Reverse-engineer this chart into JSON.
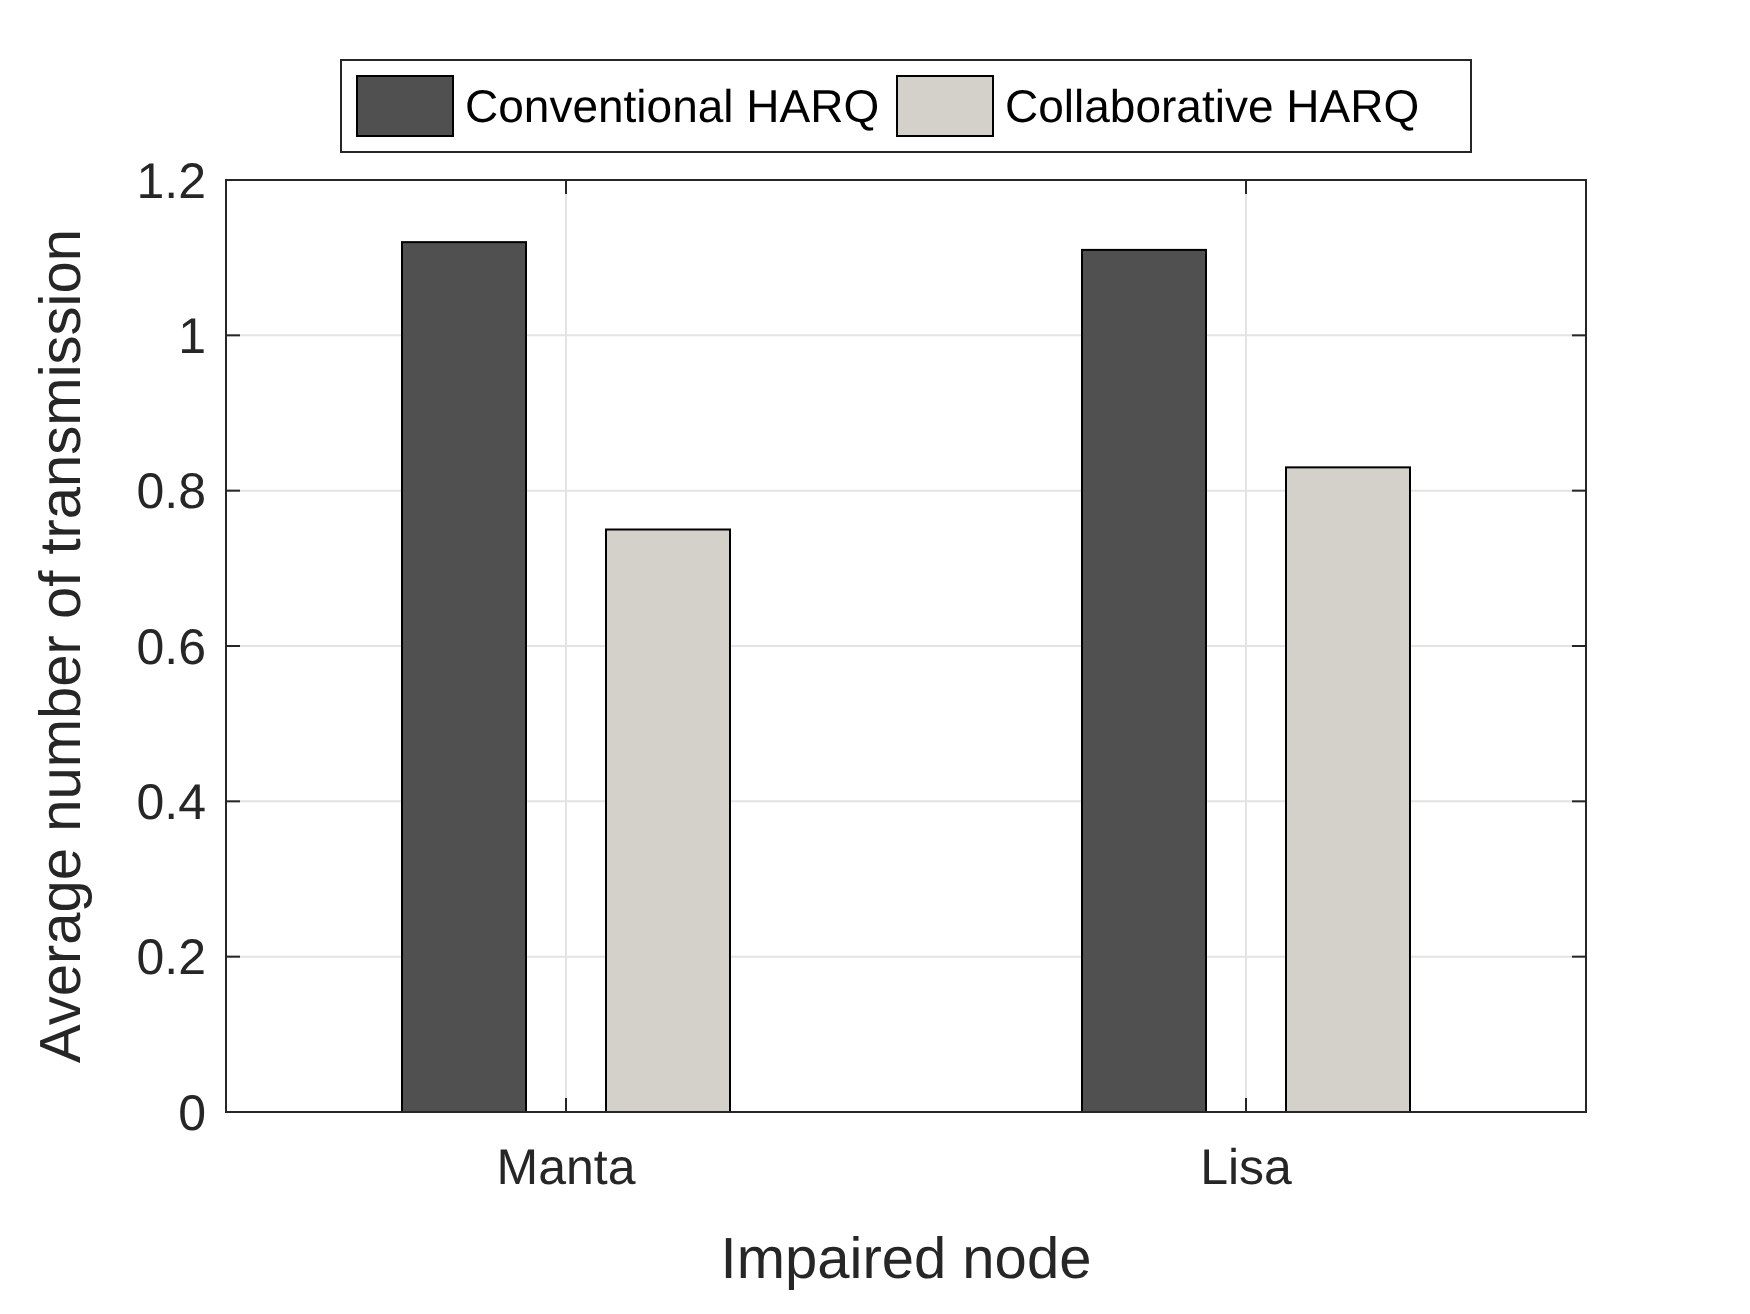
{
  "chart_data": {
    "type": "bar",
    "xlabel": "Impaired node",
    "ylabel": "Average number of transmission",
    "categories": [
      "Manta",
      "Lisa"
    ],
    "series": [
      {
        "name": "Conventional HARQ",
        "color": "#505050",
        "values": [
          1.12,
          1.11
        ]
      },
      {
        "name": "Collaborative HARQ",
        "color": "#d3d1c9",
        "values": [
          0.75,
          0.83
        ]
      }
    ],
    "ylim": [
      0,
      1.2
    ],
    "yticks": [
      0,
      0.2,
      0.4,
      0.6,
      0.8,
      1,
      1.2
    ],
    "grid": true,
    "legend": "top"
  }
}
